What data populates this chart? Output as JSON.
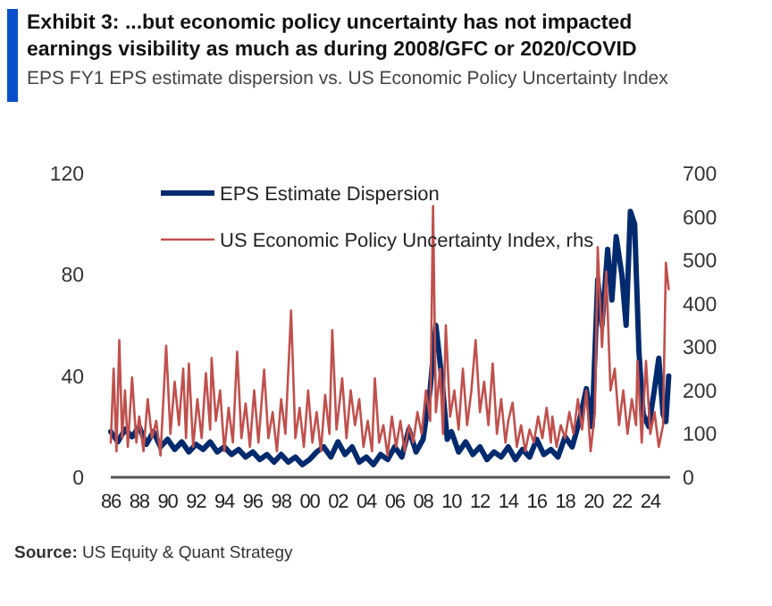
{
  "chart_data": {
    "type": "line",
    "title": "Exhibit 3: ...but economic policy uncertainty has not impacted earnings visibility as much as during 2008/GFC or 2020/COVID",
    "subtitle": "EPS FY1 EPS estimate dispersion vs. US Economic Policy Uncertainty Index",
    "annotations": [
      "Source: US Equity & Quant Strategy"
    ],
    "xlim": [
      1986,
      2025.4
    ],
    "xticks": [
      {
        "value": 1986,
        "label": "86"
      },
      {
        "value": 1988,
        "label": "88"
      },
      {
        "value": 1990,
        "label": "90"
      },
      {
        "value": 1992,
        "label": "92"
      },
      {
        "value": 1994,
        "label": "94"
      },
      {
        "value": 1996,
        "label": "96"
      },
      {
        "value": 1998,
        "label": "98"
      },
      {
        "value": 2000,
        "label": "00"
      },
      {
        "value": 2002,
        "label": "02"
      },
      {
        "value": 2004,
        "label": "04"
      },
      {
        "value": 2006,
        "label": "06"
      },
      {
        "value": 2008,
        "label": "08"
      },
      {
        "value": 2010,
        "label": "10"
      },
      {
        "value": 2012,
        "label": "12"
      },
      {
        "value": 2014,
        "label": "14"
      },
      {
        "value": 2016,
        "label": "16"
      },
      {
        "value": 2018,
        "label": "18"
      },
      {
        "value": 2020,
        "label": "20"
      },
      {
        "value": 2022,
        "label": "22"
      },
      {
        "value": 2024,
        "label": "24"
      }
    ],
    "ylim": [
      0,
      120
    ],
    "yticks": [
      0,
      40,
      80,
      120
    ],
    "y2lim": [
      0,
      700
    ],
    "y2ticks": [
      0,
      100,
      200,
      300,
      400,
      500,
      600,
      700
    ],
    "grid": false,
    "legend": "top",
    "marker": "none",
    "line_style": "solid",
    "series": [
      {
        "name": "EPS Estimate Dispersion",
        "color": "#002a6e",
        "x": [
          1986.0,
          1986.5,
          1987.0,
          1987.5,
          1988.0,
          1988.5,
          1989.0,
          1989.5,
          1990.0,
          1990.5,
          1991.0,
          1991.5,
          1992.0,
          1992.5,
          1993.0,
          1993.5,
          1994.0,
          1994.5,
          1995.0,
          1995.5,
          1996.0,
          1996.5,
          1997.0,
          1997.5,
          1998.0,
          1998.5,
          1999.0,
          1999.5,
          2000.0,
          2000.5,
          2001.0,
          2001.5,
          2002.0,
          2002.5,
          2003.0,
          2003.5,
          2004.0,
          2004.5,
          2005.0,
          2005.5,
          2006.0,
          2006.5,
          2007.0,
          2007.5,
          2008.0,
          2008.5,
          2008.9,
          2009.3,
          2009.7,
          2010.0,
          2010.5,
          2011.0,
          2011.5,
          2012.0,
          2012.5,
          2013.0,
          2013.5,
          2014.0,
          2014.5,
          2015.0,
          2015.5,
          2016.0,
          2016.5,
          2017.0,
          2017.5,
          2018.0,
          2018.5,
          2019.0,
          2019.5,
          2019.9,
          2020.3,
          2020.6,
          2021.0,
          2021.3,
          2021.6,
          2022.0,
          2022.3,
          2022.6,
          2022.9,
          2023.2,
          2023.5,
          2023.9,
          2024.3,
          2024.6,
          2024.9,
          2025.1,
          2025.3
        ],
        "values": [
          18,
          14,
          19,
          16,
          20,
          13,
          18,
          12,
          15,
          11,
          14,
          10,
          13,
          11,
          14,
          10,
          12,
          9,
          11,
          8,
          10,
          7,
          9,
          6,
          9,
          6,
          8,
          5,
          7,
          10,
          12,
          8,
          14,
          9,
          12,
          6,
          8,
          5,
          9,
          7,
          12,
          8,
          19,
          10,
          15,
          35,
          60,
          40,
          15,
          18,
          10,
          14,
          9,
          12,
          7,
          10,
          8,
          12,
          7,
          11,
          8,
          15,
          9,
          11,
          8,
          16,
          12,
          22,
          35,
          20,
          78,
          60,
          90,
          70,
          95,
          80,
          60,
          105,
          100,
          50,
          25,
          20,
          35,
          47,
          25,
          22,
          40
        ]
      },
      {
        "name": "US Economic Policy Uncertainty Index, rhs",
        "color": "#c0504d",
        "axis": "y2",
        "x": [
          1986.0,
          1986.2,
          1986.4,
          1986.6,
          1986.8,
          1987.0,
          1987.2,
          1987.5,
          1987.8,
          1988.0,
          1988.3,
          1988.6,
          1988.9,
          1989.2,
          1989.5,
          1989.9,
          1990.2,
          1990.5,
          1990.8,
          1991.1,
          1991.3,
          1991.5,
          1991.8,
          1992.1,
          1992.4,
          1992.7,
          1993.0,
          1993.1,
          1993.4,
          1993.7,
          1994.0,
          1994.3,
          1994.6,
          1994.9,
          1995.2,
          1995.5,
          1995.8,
          1996.1,
          1996.4,
          1996.8,
          1997.1,
          1997.4,
          1997.7,
          1998.0,
          1998.3,
          1998.7,
          1999.0,
          1999.3,
          1999.6,
          1999.9,
          2000.2,
          2000.5,
          2000.8,
          2001.1,
          2001.4,
          2001.6,
          2001.9,
          2002.3,
          2002.6,
          2002.9,
          2003.2,
          2003.5,
          2003.8,
          2004.1,
          2004.4,
          2004.6,
          2004.9,
          2005.2,
          2005.5,
          2005.8,
          2006.1,
          2006.4,
          2006.7,
          2007.0,
          2007.3,
          2007.6,
          2007.9,
          2008.2,
          2008.5,
          2008.7,
          2008.9,
          2009.2,
          2009.4,
          2009.6,
          2009.9,
          2010.2,
          2010.5,
          2010.8,
          2011.1,
          2011.4,
          2011.7,
          2012.0,
          2012.3,
          2012.6,
          2012.9,
          2013.2,
          2013.5,
          2013.8,
          2014.0,
          2014.3,
          2014.6,
          2014.9,
          2015.2,
          2015.5,
          2015.8,
          2016.1,
          2016.4,
          2016.7,
          2017.0,
          2017.1,
          2017.4,
          2017.7,
          2018.0,
          2018.3,
          2018.6,
          2018.9,
          2019.2,
          2019.5,
          2019.8,
          2020.1,
          2020.3,
          2020.6,
          2020.9,
          2021.2,
          2021.5,
          2021.8,
          2022.1,
          2022.4,
          2022.7,
          2023.0,
          2023.1,
          2023.4,
          2023.7,
          2024.0,
          2024.3,
          2024.6,
          2024.9,
          2025.1,
          2025.3
        ],
        "values": [
          80,
          250,
          60,
          316,
          90,
          200,
          70,
          230,
          80,
          140,
          60,
          180,
          90,
          130,
          50,
          303,
          100,
          220,
          120,
          250,
          90,
          262,
          70,
          180,
          90,
          240,
          110,
          275,
          130,
          200,
          60,
          160,
          80,
          289,
          90,
          170,
          70,
          200,
          80,
          248,
          90,
          150,
          60,
          180,
          100,
          384,
          90,
          160,
          70,
          200,
          80,
          150,
          60,
          190,
          100,
          339,
          110,
          228,
          90,
          200,
          120,
          180,
          70,
          130,
          60,
          228,
          80,
          120,
          50,
          140,
          70,
          130,
          60,
          120,
          80,
          150,
          100,
          200,
          130,
          625,
          150,
          250,
          100,
          350,
          140,
          200,
          110,
          250,
          120,
          200,
          316,
          150,
          220,
          120,
          262,
          100,
          180,
          80,
          130,
          172,
          70,
          120,
          60,
          110,
          80,
          140,
          90,
          160,
          80,
          140,
          70,
          120,
          90,
          150,
          100,
          180,
          110,
          200,
          60,
          150,
          530,
          300,
          474,
          200,
          250,
          120,
          200,
          100,
          180,
          120,
          268,
          80,
          268,
          100,
          150,
          70,
          120,
          494,
          433
        ]
      }
    ]
  }
}
